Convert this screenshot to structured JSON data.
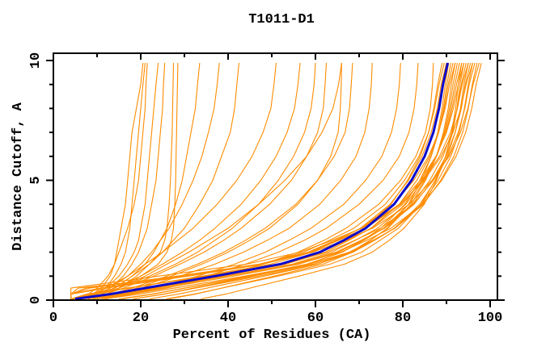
{
  "title": "T1011-D1",
  "chart_data": {
    "type": "line",
    "title": "T1011-D1",
    "xlabel": "Percent of Residues (CA)",
    "ylabel": "Distance Cutoff, A",
    "xlim": [
      0,
      102
    ],
    "ylim": [
      0,
      10.3
    ],
    "grid": false,
    "legend": "none",
    "x_ticks_major": [
      0,
      20,
      40,
      60,
      80,
      100
    ],
    "x_tick_labels": [
      "0",
      "20",
      "40",
      "60",
      "80",
      "100"
    ],
    "x_ticks_minor": [
      10,
      30,
      50,
      70,
      90
    ],
    "y_ticks_major": [
      0,
      5,
      10
    ],
    "y_tick_labels": [
      "0",
      "5",
      "10"
    ],
    "y_ticks_minor": [
      1,
      2,
      3,
      4,
      6,
      7,
      8,
      9
    ],
    "colors": {
      "ensemble": "#ff8c00",
      "highlight": "#0a0acd",
      "axis": "#000000",
      "background": "#ffffff"
    },
    "cutoffs": [
      0.05,
      0.25,
      0.5,
      1,
      1.5,
      2,
      2.5,
      3,
      4,
      5,
      6,
      7,
      8,
      9,
      9.9
    ],
    "highlight_series": {
      "name": "highlighted-model",
      "x": [
        5,
        13,
        21,
        37,
        52,
        61,
        66.5,
        71.5,
        78,
        82,
        85,
        87,
        88.3,
        89.2,
        90.3
      ]
    },
    "ensemble_series": [
      [
        8,
        15.6,
        23.2,
        38.4,
        52.6,
        61.2,
        66.4,
        71.1,
        77.3,
        81.1,
        84,
        85.9,
        87.1,
        88,
        89
      ],
      [
        4,
        8.8,
        17.2,
        34,
        49.8,
        59.2,
        65,
        70.3,
        77.1,
        81.3,
        84.4,
        86.5,
        87.9,
        88.8,
        90
      ],
      [
        18.5,
        25.3,
        32.1,
        45.7,
        58.4,
        66.1,
        70.8,
        75,
        80.5,
        83.9,
        86.5,
        88.2,
        89.3,
        90.1,
        91
      ],
      [
        6.2,
        14.2,
        22.2,
        38.2,
        53.2,
        62.2,
        67.7,
        72.7,
        79.2,
        83.2,
        86.2,
        88.2,
        89.5,
        90.4,
        91.5
      ],
      [
        4,
        4,
        12.3,
        30.7,
        48,
        58.3,
        64.6,
        70.4,
        77.9,
        82.5,
        85.9,
        88.2,
        89.7,
        90.7,
        92
      ],
      [
        15.7,
        22.9,
        30.1,
        44.5,
        58,
        66.1,
        71.1,
        75.6,
        81.4,
        85,
        87.7,
        89.5,
        90.7,
        91.5,
        92.5
      ],
      [
        7.7,
        15.7,
        23.7,
        39.7,
        54.7,
        63.7,
        69.2,
        74.2,
        80.7,
        84.7,
        87.7,
        89.7,
        91,
        91.9,
        93
      ],
      [
        4,
        8.5,
        17.3,
        34.9,
        51.4,
        61.3,
        67.3,
        72.8,
        80,
        84.4,
        87.7,
        89.9,
        91.3,
        92.3,
        93.5
      ],
      [
        25.8,
        32.2,
        38.6,
        51.4,
        63.4,
        70.6,
        74.8,
        79,
        84.2,
        87.4,
        89.8,
        91.4,
        92.4,
        93.1,
        94
      ],
      [
        4,
        4,
        10.8,
        30,
        48,
        58.8,
        65.4,
        71.4,
        79.2,
        84,
        87.6,
        90,
        91.6,
        92.7,
        94
      ],
      [
        9.2,
        17.2,
        25.2,
        41.2,
        56.2,
        65.2,
        70.7,
        75.7,
        82.2,
        86.2,
        89.2,
        91.2,
        92.5,
        93.4,
        94.5
      ],
      [
        18.2,
        25.4,
        32.6,
        47,
        60.5,
        68.6,
        73.6,
        78.1,
        83.9,
        87.5,
        90.2,
        92,
        93.2,
        94,
        95
      ],
      [
        4,
        4,
        8.4,
        28.4,
        47.1,
        58.4,
        65.2,
        71.5,
        79.6,
        84.6,
        88.4,
        90.9,
        92.5,
        93.6,
        95
      ],
      [
        5.9,
        14.3,
        22.7,
        39.5,
        55.3,
        64.7,
        70.5,
        75.8,
        82.6,
        86.8,
        89.9,
        92,
        93.4,
        94.3,
        95.5
      ],
      [
        15,
        22.6,
        30.2,
        45.4,
        59.6,
        68.2,
        73.4,
        78.1,
        84.3,
        88.1,
        91,
        92.9,
        94.1,
        95,
        96
      ],
      [
        4,
        7.6,
        16.8,
        35.2,
        52.5,
        62.8,
        69.1,
        74.9,
        82.4,
        87,
        90.4,
        92.7,
        94.2,
        95.2,
        96.5
      ],
      [
        11.7,
        19.7,
        27.7,
        43.7,
        58.7,
        67.7,
        73.2,
        78.2,
        84.7,
        88.7,
        91.7,
        93.7,
        95,
        95.9,
        97
      ],
      [
        4,
        4,
        7.4,
        28.2,
        47.7,
        59.4,
        66.6,
        73.1,
        81.5,
        86.7,
        90.6,
        93.2,
        94.9,
        96.1,
        97.5
      ],
      [
        4.2,
        12.5,
        21.8,
        39.4,
        55.9,
        65.8,
        71.8,
        77.3,
        84.5,
        88.9,
        92.2,
        94.4,
        95.8,
        96.8,
        98
      ],
      [
        26.5,
        32.5,
        38.5,
        50.5,
        61.8,
        68.5,
        72.6,
        76.4,
        81.3,
        84.3,
        86.5,
        88,
        89,
        89.7,
        90.5
      ],
      [
        33.8,
        39.4,
        45,
        56.2,
        66.7,
        73,
        76.9,
        80.3,
        84.9,
        87.7,
        89.8,
        91.2,
        92.1,
        92.7,
        93.5
      ],
      [
        4,
        4,
        4,
        24,
        44.3,
        56.4,
        63.9,
        70.6,
        79.4,
        84.8,
        88.8,
        91.5,
        93.3,
        94.5,
        96
      ],
      [
        4,
        4,
        5.7,
        30.9,
        47.4,
        57.3,
        63.3,
        68.8,
        76,
        80.4,
        83.7,
        85.9,
        87.3,
        88.3,
        89.5
      ],
      [
        22,
        28.6,
        35.2,
        48.3,
        60.6,
        68,
        72.5,
        76.6,
        81.9,
        85.2,
        87.7,
        89.3,
        90.4,
        91.1,
        92
      ],
      [
        5,
        9,
        11,
        13,
        14,
        14.5,
        15,
        15.5,
        16.5,
        17,
        17.5,
        18,
        19,
        20,
        20.5
      ],
      [
        6,
        10,
        12,
        14,
        15.5,
        16.5,
        17,
        17.5,
        18,
        18.5,
        19,
        19.5,
        20,
        20.5,
        21
      ],
      [
        5,
        8,
        10,
        12.5,
        14,
        15,
        16,
        17,
        18.5,
        19.5,
        20,
        20.5,
        21,
        21.2,
        21.5
      ],
      [
        6,
        9.5,
        12,
        15,
        17,
        18.5,
        19.5,
        20,
        21,
        21.5,
        22,
        22.5,
        23,
        23.5,
        24
      ],
      [
        7,
        10,
        13,
        16,
        18,
        19.5,
        20.5,
        21.5,
        22.5,
        23.5,
        24,
        24.5,
        25,
        25.2,
        25.5
      ],
      [
        6,
        10,
        14,
        18,
        22,
        24.5,
        25.5,
        26,
        26.5,
        26.8,
        27,
        27.2,
        27.3,
        27.4,
        27.5
      ],
      [
        7,
        11,
        15,
        20,
        24,
        26,
        27,
        27.5,
        27.8,
        28,
        28.1,
        28.2,
        28.3,
        28.4,
        28.5
      ],
      [
        8,
        11,
        14,
        18,
        21,
        23,
        24.5,
        26,
        28,
        29.5,
        30.5,
        31.5,
        32.5,
        33,
        33.5
      ],
      [
        7,
        10,
        13,
        17,
        20,
        22.5,
        24.5,
        26.5,
        29.5,
        32,
        34,
        35.5,
        36.8,
        37.5,
        38
      ],
      [
        8,
        12,
        15,
        19,
        22,
        25,
        27.5,
        30,
        33.5,
        36.5,
        38.5,
        40.5,
        41.5,
        42,
        42.5
      ],
      [
        6,
        9,
        12,
        17,
        21,
        25,
        28.5,
        32,
        37.5,
        42,
        45.5,
        48,
        49.8,
        50.5,
        51
      ],
      [
        7,
        10,
        14,
        20,
        25,
        29.5,
        33.5,
        37,
        43,
        47.5,
        51,
        53.5,
        55.2,
        56,
        56.5
      ],
      [
        6,
        10,
        15,
        22,
        28,
        33,
        37,
        41,
        47,
        51.5,
        55,
        57.5,
        59,
        59.7,
        60
      ],
      [
        8,
        12,
        16,
        23,
        29,
        34.5,
        39,
        43,
        49.5,
        54.5,
        58,
        60.5,
        61.8,
        62.2,
        62.5
      ],
      [
        7,
        11,
        15,
        21,
        26,
        31,
        35.5,
        40,
        47,
        53,
        58,
        61.5,
        64,
        65.3,
        66
      ],
      [
        10,
        14,
        19,
        27,
        34,
        40,
        45,
        49.5,
        56,
        60.5,
        63.5,
        65.2,
        65.7,
        65.9,
        66
      ],
      [
        8,
        13,
        18,
        26,
        33,
        39,
        44,
        48.5,
        55.5,
        60.5,
        64.3,
        66.8,
        67.8,
        68.2,
        68.5
      ],
      [
        9,
        14,
        20,
        29,
        37,
        43.5,
        49,
        54,
        61,
        65.8,
        69.3,
        71.3,
        72.3,
        72.8,
        73
      ],
      [
        10,
        16,
        23,
        33,
        41.5,
        48.5,
        54,
        59,
        66.5,
        71.5,
        75.2,
        77.4,
        78.6,
        79.2,
        79.5
      ],
      [
        11,
        17,
        24,
        35,
        44,
        51.5,
        57.5,
        62.5,
        70,
        75.5,
        79.2,
        81.4,
        82.6,
        83.2,
        83.5
      ],
      [
        12,
        18,
        26,
        38,
        48,
        56,
        62,
        67,
        74.5,
        79.5,
        83,
        85.2,
        86.3,
        86.8,
        87
      ]
    ]
  }
}
